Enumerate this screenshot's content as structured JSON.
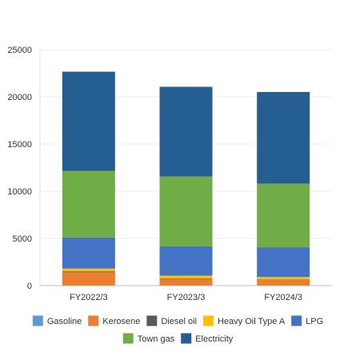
{
  "chart_data": {
    "type": "bar",
    "stacked": true,
    "categories": [
      "FY2022/3",
      "FY2023/3",
      "FY2024/3"
    ],
    "series": [
      {
        "name": "Gasoline",
        "color": "#5b9bd5",
        "values": [
          10,
          10,
          10
        ]
      },
      {
        "name": "Kerosene",
        "color": "#ed7d31",
        "values": [
          1400,
          700,
          600
        ]
      },
      {
        "name": "Diesel oil",
        "color": "#595959",
        "values": [
          100,
          50,
          50
        ]
      },
      {
        "name": "Heavy Oil Type A",
        "color": "#ffc000",
        "values": [
          300,
          300,
          250
        ]
      },
      {
        "name": "LPG",
        "color": "#4472c4",
        "values": [
          3300,
          3100,
          3150
        ]
      },
      {
        "name": "Town gas",
        "color": "#70ad47",
        "values": [
          7050,
          7400,
          6750
        ]
      },
      {
        "name": "Electricity",
        "color": "#255e91",
        "values": [
          10500,
          9500,
          9700
        ]
      }
    ],
    "y_ticks": [
      "0",
      "5000",
      "10000",
      "15000",
      "20000",
      "25000"
    ],
    "ylim": [
      0,
      25000
    ],
    "grid": true,
    "legend_position": "bottom"
  }
}
